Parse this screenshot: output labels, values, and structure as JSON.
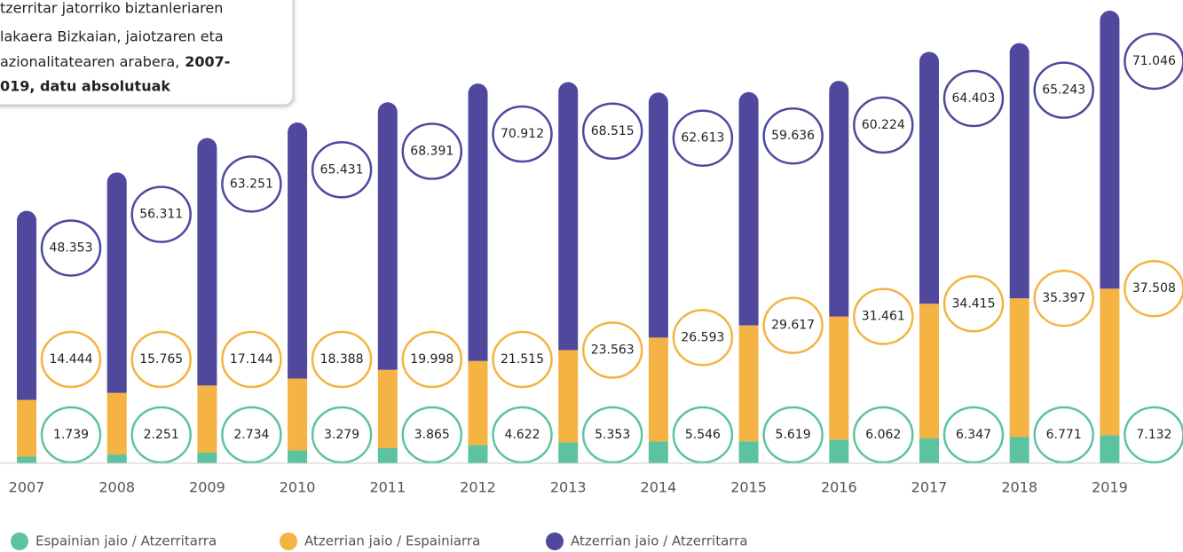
{
  "chart_data": {
    "type": "stacked-bar",
    "title": [
      "tzerritar jatorriko biztanleriaren",
      "lakaera Bizkaian, jaiotzaren eta",
      "azionalitatearen arabera,",
      "2007-",
      "019, datu absolutuak"
    ],
    "categories": [
      "2007",
      "2008",
      "2009",
      "2010",
      "2011",
      "2012",
      "2013",
      "2014",
      "2015",
      "2016",
      "2017",
      "2018",
      "2019"
    ],
    "series": [
      {
        "name": "Espainian jaio / Atzerritarra",
        "color": "#5cc3a0",
        "values": [
          1739,
          2251,
          2734,
          3279,
          3865,
          4622,
          5353,
          5546,
          5619,
          6062,
          6347,
          6771,
          7132
        ],
        "value_labels": [
          "1.739",
          "2.251",
          "2.734",
          "3.279",
          "3.865",
          "4.622",
          "5.353",
          "5.546",
          "5.619",
          "6.062",
          "6.347",
          "6.771",
          "7.132"
        ]
      },
      {
        "name": "Atzerrian jaio / Espainiarra",
        "color": "#f4b342",
        "values": [
          14444,
          15765,
          17144,
          18388,
          19998,
          21515,
          23563,
          26593,
          29617,
          31461,
          34415,
          35397,
          37508
        ],
        "value_labels": [
          "14.444",
          "15.765",
          "17.144",
          "18.388",
          "19.998",
          "21.515",
          "23.563",
          "26.593",
          "29.617",
          "31.461",
          "34.415",
          "35.397",
          "37.508"
        ]
      },
      {
        "name": "Atzerrian jaio / Atzerritarra",
        "color": "#4f489d",
        "values": [
          48353,
          56311,
          63251,
          65431,
          68391,
          70912,
          68515,
          62613,
          59636,
          60224,
          64403,
          65243,
          71046
        ],
        "value_labels": [
          "48.353",
          "56.311",
          "63.251",
          "65.431",
          "68.391",
          "70.912",
          "68.515",
          "62.613",
          "59.636",
          "60.224",
          "64.403",
          "65.243",
          "71.046"
        ]
      }
    ]
  }
}
